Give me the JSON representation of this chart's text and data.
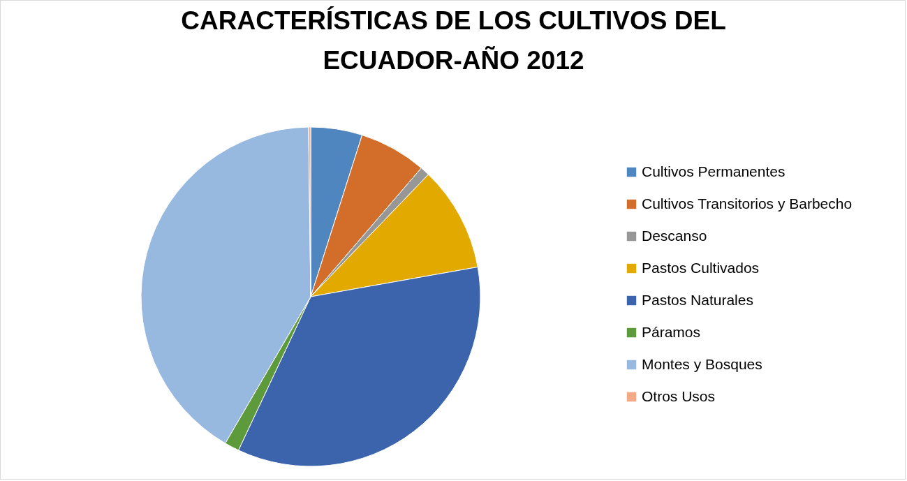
{
  "chart_data": {
    "type": "pie",
    "title": "CARACTERÍSTICAS DE LOS CULTIVOS DEL ECUADOR-AÑO 2012",
    "categories": [
      "Cultivos Permanentes",
      "Cultivos Transitorios y Barbecho",
      "Descanso",
      "Pastos Cultivados",
      "Pastos Naturales",
      "Páramos",
      "Montes y Bosques",
      "Otros Usos"
    ],
    "values": [
      4.9,
      6.4,
      0.9,
      10.0,
      34.8,
      1.4,
      41.4,
      0.2
    ],
    "colors": [
      "#4f86c0",
      "#d26d2a",
      "#979797",
      "#e2aa00",
      "#3c64ad",
      "#5d9a3b",
      "#97b8df",
      "#f4a987"
    ],
    "legend": "right"
  }
}
